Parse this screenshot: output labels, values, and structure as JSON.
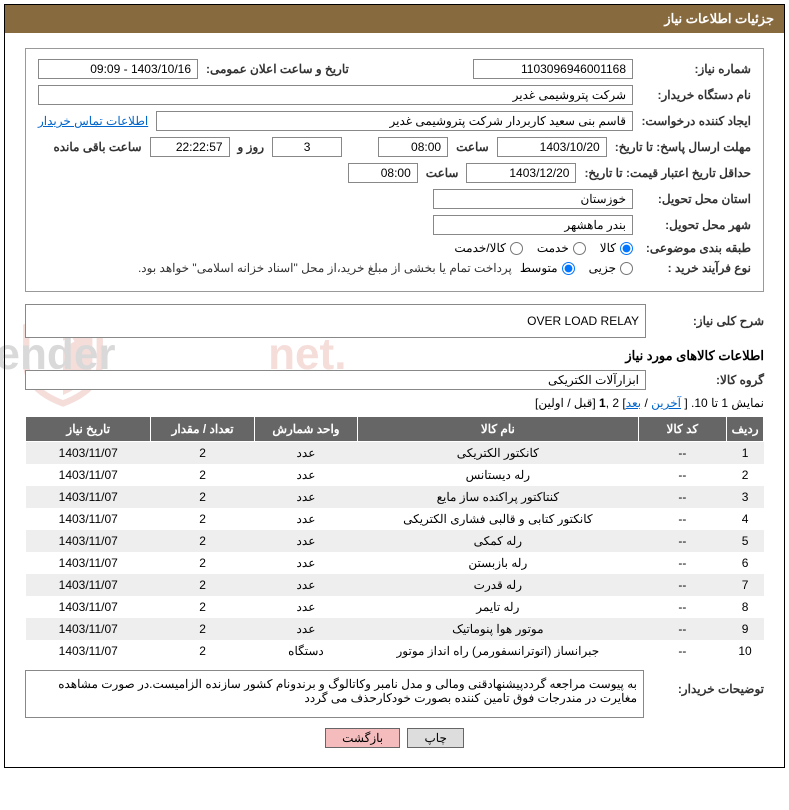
{
  "header": {
    "title": "جزئیات اطلاعات نیاز"
  },
  "watermark_text": "AriaTender.net",
  "form": {
    "need_number": {
      "label": "شماره نیاز:",
      "value": "1103096946001168"
    },
    "announce_datetime": {
      "label": "تاریخ و ساعت اعلان عمومی:",
      "value": "1403/10/16 - 09:09"
    },
    "buyer_org": {
      "label": "نام دستگاه خریدار:",
      "value": "شرکت پتروشیمی غدیر"
    },
    "requester": {
      "label": "ایجاد کننده درخواست:",
      "value": "قاسم بنی سعید کاربردار شرکت پتروشیمی غدیر"
    },
    "contact_link": "اطلاعات تماس خریدار",
    "response_deadline": {
      "label": "مهلت ارسال پاسخ: تا تاریخ:",
      "date": "1403/10/20",
      "time_label": "ساعت",
      "time": "08:00",
      "days": "3",
      "days_label": "روز و",
      "remain": "22:22:57",
      "remain_label": "ساعت باقی مانده"
    },
    "price_validity": {
      "label": "حداقل تاریخ اعتبار قیمت: تا تاریخ:",
      "date": "1403/12/20",
      "time_label": "ساعت",
      "time": "08:00"
    },
    "province": {
      "label": "استان محل تحویل:",
      "value": "خوزستان"
    },
    "city": {
      "label": "شهر محل تحویل:",
      "value": "بندر ماهشهر"
    },
    "subject_category": {
      "label": "طبقه بندی موضوعی:",
      "options": [
        "کالا",
        "خدمت",
        "کالا/خدمت"
      ],
      "selected": 0
    },
    "purchase_process": {
      "label": "نوع فرآیند خرید :",
      "options": [
        "جزیی",
        "متوسط"
      ],
      "selected": 1,
      "note": "پرداخت تمام یا بخشی از مبلغ خرید،از محل \"اسناد خزانه اسلامی\" خواهد بود."
    },
    "description": {
      "label": "شرح کلی نیاز:",
      "value": "OVER LOAD RELAY"
    },
    "goods_info_title": "اطلاعات کالاهای مورد نیاز",
    "goods_group": {
      "label": "گروه کالا:",
      "value": "ابزارآلات الکتریکی"
    }
  },
  "pager": {
    "prefix": "نمایش 1 تا 10. [ ",
    "last": "آخرین",
    "sep1": " / ",
    "next": "بعد",
    "mid": "] 2 ,",
    "one": "1",
    "sep2": " [قبل / اولین]"
  },
  "table": {
    "headers": [
      "ردیف",
      "کد کالا",
      "نام کالا",
      "واحد شمارش",
      "تعداد / مقدار",
      "تاریخ نیاز"
    ],
    "rows": [
      [
        "1",
        "--",
        "کانکتور الکتریکی",
        "عدد",
        "2",
        "1403/11/07"
      ],
      [
        "2",
        "--",
        "رله دیستانس",
        "عدد",
        "2",
        "1403/11/07"
      ],
      [
        "3",
        "--",
        "کنتاکتور پراکنده ساز مایع",
        "عدد",
        "2",
        "1403/11/07"
      ],
      [
        "4",
        "--",
        "کانکتور کتابی و قالبی فشاری الکتریکی",
        "عدد",
        "2",
        "1403/11/07"
      ],
      [
        "5",
        "--",
        "رله کمکی",
        "عدد",
        "2",
        "1403/11/07"
      ],
      [
        "6",
        "--",
        "رله بازبستن",
        "عدد",
        "2",
        "1403/11/07"
      ],
      [
        "7",
        "--",
        "رله قدرت",
        "عدد",
        "2",
        "1403/11/07"
      ],
      [
        "8",
        "--",
        "رله تایمر",
        "عدد",
        "2",
        "1403/11/07"
      ],
      [
        "9",
        "--",
        "موتور هوا پنوماتیک",
        "عدد",
        "2",
        "1403/11/07"
      ],
      [
        "10",
        "--",
        "جبرانساز (اتوترانسفورمر) راه انداز موتور",
        "دستگاه",
        "2",
        "1403/11/07"
      ]
    ],
    "col_widths": [
      "5%",
      "12%",
      "38%",
      "14%",
      "14%",
      "17%"
    ]
  },
  "buyer_notes": {
    "label": "توضیحات خریدار:",
    "text": "به پیوست مراجعه گرددپیشنهادقنی ومالی و مدل نامبر وکاتالوگ و برندونام کشور سازنده الزامیست.در صورت مشاهده مغایرت در مندرجات فوق تامین کننده بصورت خودکارحذف می گردد"
  },
  "buttons": {
    "print": "چاپ",
    "back": "بازگشت"
  },
  "colors": {
    "header_bg": "#886a3f",
    "th_bg": "#666666",
    "row_odd": "#eeeeee",
    "link": "#0066cc"
  }
}
